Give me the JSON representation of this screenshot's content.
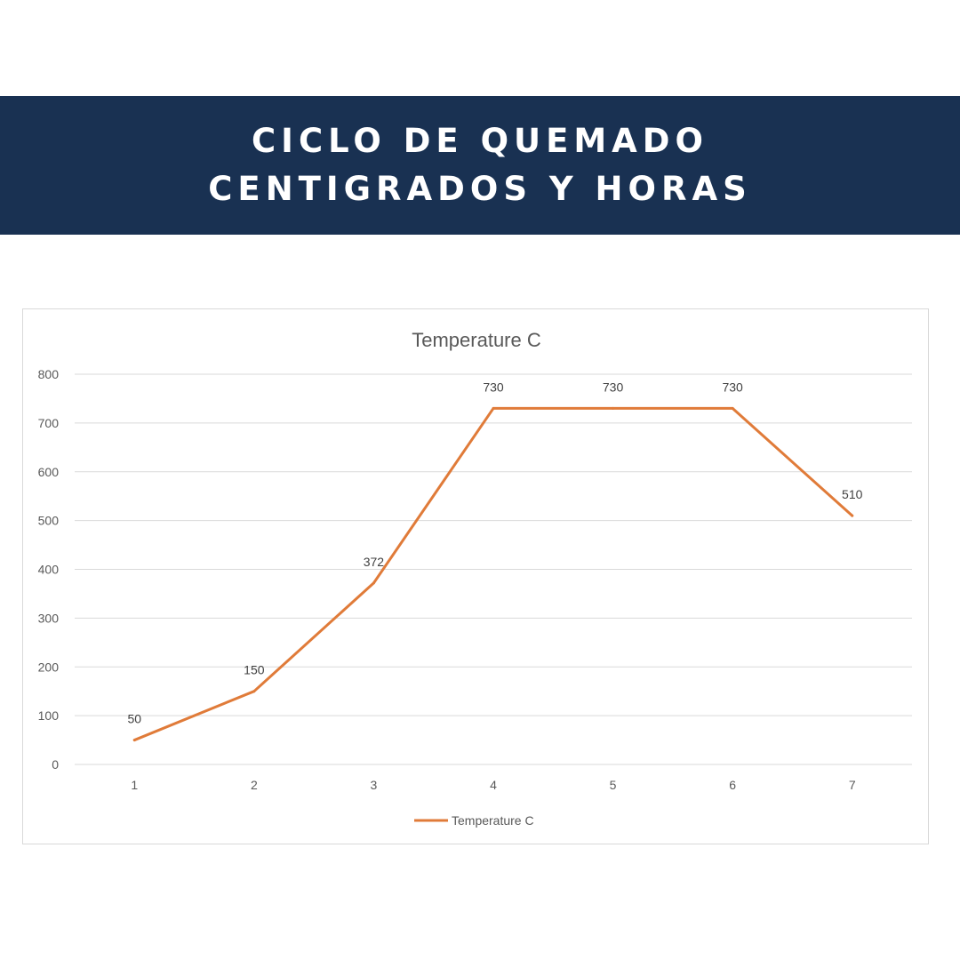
{
  "header": {
    "line1": "CICLO DE QUEMADO",
    "line2": "CENTIGRADOS Y HORAS"
  },
  "colors": {
    "banner": "#193152",
    "series": "#E07B39",
    "grid": "#d9d9d9"
  },
  "chart_data": {
    "type": "line",
    "title": "Temperature C",
    "xlabel": "",
    "ylabel": "",
    "categories": [
      "1",
      "2",
      "3",
      "4",
      "5",
      "6",
      "7"
    ],
    "series": [
      {
        "name": "Temperature C",
        "values": [
          50,
          150,
          372,
          730,
          730,
          730,
          510
        ]
      }
    ],
    "ylim": [
      0,
      800
    ],
    "yticks": [
      0,
      100,
      200,
      300,
      400,
      500,
      600,
      700,
      800
    ],
    "grid": true,
    "legend": "bottom",
    "data_labels": true
  }
}
